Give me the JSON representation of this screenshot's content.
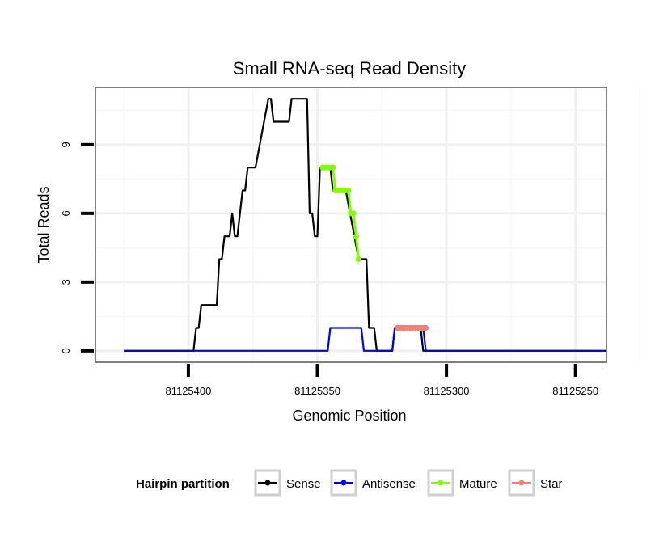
{
  "chart_data": {
    "type": "line",
    "title": "Small RNA-seq Read Density",
    "xlabel": "Genomic Position",
    "ylabel": "Total Reads",
    "x_reversed": true,
    "xlim": [
      81125436,
      81125238
    ],
    "ylim": [
      -0.5,
      11.5
    ],
    "x_ticks": [
      81125400,
      81125350,
      81125300,
      81125250
    ],
    "x_tick_labels": [
      "81125400",
      "81125350",
      "81125300",
      "81125250"
    ],
    "y_ticks": [
      0,
      3,
      6,
      9
    ],
    "y_tick_labels": [
      "0",
      "3",
      "6",
      "9"
    ],
    "grid": true,
    "legend": {
      "title": "Hairpin partition",
      "position": "bottom",
      "entries": [
        "Sense",
        "Antisense",
        "Mature",
        "Star"
      ]
    },
    "series": [
      {
        "name": "Sense",
        "color": "#000000",
        "marker": false,
        "x": [
          81125425,
          81125398,
          81125397,
          81125396,
          81125395,
          81125394,
          81125393,
          81125389,
          81125388,
          81125387,
          81125386,
          81125385,
          81125384,
          81125383,
          81125382,
          81125381,
          81125380,
          81125379,
          81125378,
          81125377,
          81125376,
          81125375,
          81125374,
          81125369,
          81125368,
          81125367,
          81125366,
          81125365,
          81125361,
          81125360,
          81125359,
          81125354,
          81125353,
          81125352,
          81125351,
          81125350,
          81125349,
          81125348,
          81125347,
          81125345,
          81125344,
          81125342,
          81125339,
          81125334,
          81125331,
          81125330,
          81125328,
          81125327,
          81125326,
          81125325,
          81125324,
          81125321,
          81125320,
          81125318,
          81125317,
          81125316,
          81125310,
          81125309,
          81125308,
          81125238
        ],
        "y": [
          0,
          0,
          1,
          1,
          2,
          2,
          2,
          2,
          4,
          4,
          5,
          5,
          5,
          6,
          5,
          5,
          6,
          7,
          7,
          8,
          8,
          8,
          8,
          11,
          11,
          10,
          10,
          10,
          10,
          11,
          11,
          11,
          6,
          6,
          5,
          5,
          8,
          8,
          8,
          8,
          7,
          7,
          7,
          4,
          4,
          1,
          1,
          0,
          0,
          0,
          0,
          0,
          1,
          1,
          1,
          1,
          1,
          0,
          0,
          0
        ]
      },
      {
        "name": "Antisense",
        "color": "#0000ff",
        "marker": false,
        "x": [
          81125425,
          81125346,
          81125345,
          81125333,
          81125332,
          81125321,
          81125320,
          81125309,
          81125308,
          81125238
        ],
        "y": [
          0,
          0,
          1,
          1,
          0,
          0,
          1,
          1,
          0,
          0
        ]
      },
      {
        "name": "Mature",
        "color": "#7fff00",
        "marker": true,
        "x": [
          81125348,
          81125347,
          81125346,
          81125345,
          81125344,
          81125343,
          81125342,
          81125341,
          81125340,
          81125339,
          81125338,
          81125337,
          81125336,
          81125335,
          81125334
        ],
        "y": [
          8,
          8,
          8,
          8,
          8,
          7,
          7,
          7,
          7,
          7,
          7,
          6,
          6,
          5,
          4
        ]
      },
      {
        "name": "Star",
        "color": "#f08070",
        "marker": true,
        "x": [
          81125319,
          81125318,
          81125317,
          81125316,
          81125315,
          81125314,
          81125313,
          81125312,
          81125311,
          81125310,
          81125309,
          81125308
        ],
        "y": [
          1,
          1,
          1,
          1,
          1,
          1,
          1,
          1,
          1,
          1,
          1,
          1
        ]
      }
    ]
  }
}
